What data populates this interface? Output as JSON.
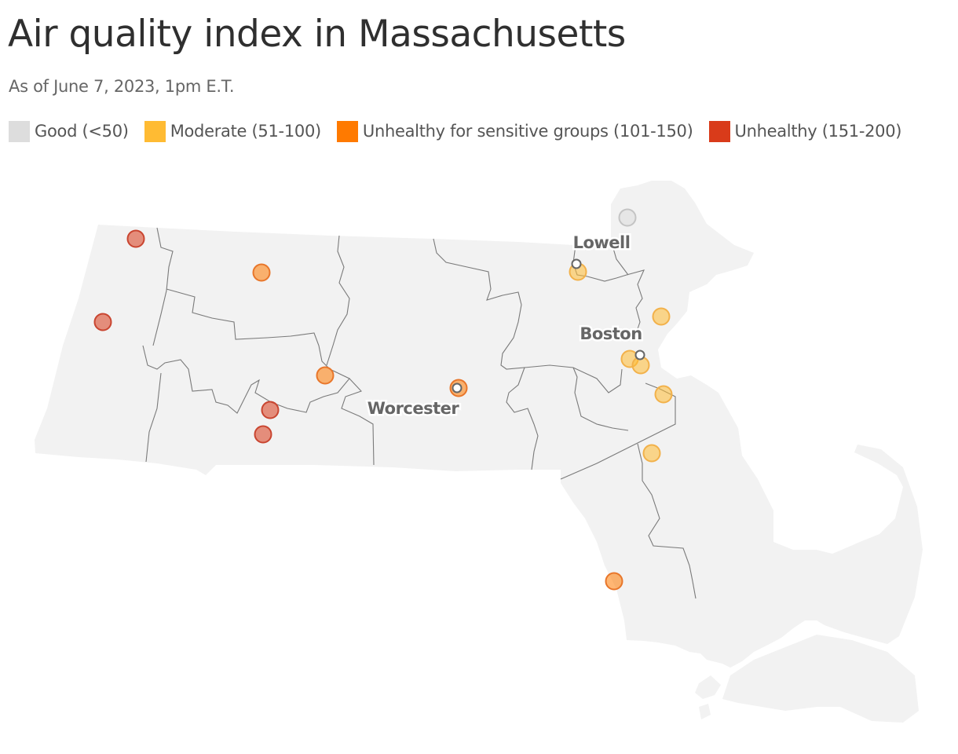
{
  "header": {
    "title": "Air quality index in Massachusetts",
    "subtitle": "As of June 7, 2023, 1pm E.T."
  },
  "legend": [
    {
      "category": "good",
      "label": "Good (<50)",
      "color": "#dddddd"
    },
    {
      "category": "moderate",
      "label": "Moderate (51-100)",
      "color": "#ffbb33"
    },
    {
      "category": "usg",
      "label": "Unhealthy for sensitive groups (101-150)",
      "color": "#ff7a00"
    },
    {
      "category": "unhealthy",
      "label": "Unhealthy (151-200)",
      "color": "#d93b1a"
    }
  ],
  "map": {
    "region": "Massachusetts",
    "cities": [
      {
        "name": "Lowell"
      },
      {
        "name": "Boston"
      },
      {
        "name": "Worcester"
      }
    ],
    "sensors": [
      {
        "category": "unhealthy"
      },
      {
        "category": "unhealthy"
      },
      {
        "category": "unhealthy"
      },
      {
        "category": "unhealthy"
      },
      {
        "category": "usg"
      },
      {
        "category": "usg"
      },
      {
        "category": "usg"
      },
      {
        "category": "usg"
      },
      {
        "category": "good"
      },
      {
        "category": "moderate"
      },
      {
        "category": "moderate"
      },
      {
        "category": "moderate"
      },
      {
        "category": "moderate"
      },
      {
        "category": "moderate"
      },
      {
        "category": "moderate"
      }
    ]
  }
}
